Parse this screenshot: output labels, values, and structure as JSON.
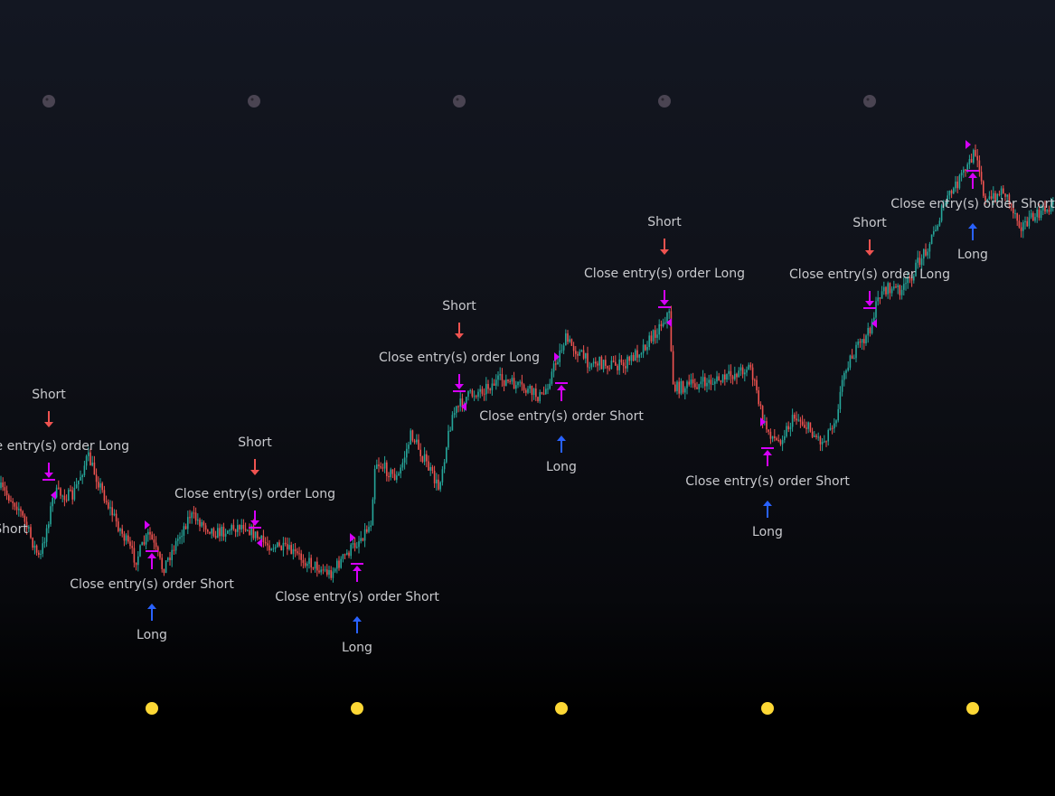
{
  "chart_data": {
    "type": "candlestick",
    "title": "",
    "grid": false,
    "colors": {
      "up": "#26a69a",
      "down": "#ef5350",
      "entry_short": "#ef5350",
      "entry_long": "#2962ff",
      "exit": "#d500f9",
      "new_moon": "#4a4452",
      "full_moon": "#fdd835"
    },
    "moon_markers": {
      "top": {
        "icon": "new-moon-icon",
        "count": 5
      },
      "bottom": {
        "icon": "full-moon-icon",
        "count": 5
      }
    },
    "signals": [
      {
        "direction": "long",
        "entry_label": "Long",
        "close_label": "Close entry(s) order Short"
      },
      {
        "direction": "short",
        "entry_label": "Short",
        "close_label": "Close entry(s) order Long"
      },
      {
        "direction": "long",
        "entry_label": "Long",
        "close_label": "Close entry(s) order Short"
      },
      {
        "direction": "short",
        "entry_label": "Short",
        "close_label": "Close entry(s) order Long"
      },
      {
        "direction": "long",
        "entry_label": "Long",
        "close_label": "Close entry(s) order Short"
      },
      {
        "direction": "short",
        "entry_label": "Short",
        "close_label": "Close entry(s) order Long"
      },
      {
        "direction": "long",
        "entry_label": "Long",
        "close_label": "Close entry(s) order Short"
      },
      {
        "direction": "short",
        "entry_label": "Short",
        "close_label": "Close entry(s) order Long"
      },
      {
        "direction": "long",
        "entry_label": "Long",
        "close_label": "Close entry(s) order Short"
      },
      {
        "direction": "short",
        "entry_label": "Short",
        "close_label": "Close entry(s) order Long"
      },
      {
        "direction": "long",
        "entry_label": "Long",
        "close_label": "Close entry(s) order Short"
      }
    ]
  }
}
